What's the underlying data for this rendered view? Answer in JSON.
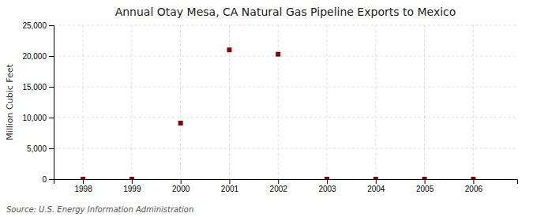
{
  "chart_data": {
    "type": "scatter",
    "title": "Annual Otay Mesa, CA Natural Gas Pipeline Exports to Mexico",
    "y_label": "Million Cubic Feet",
    "annotations": [
      "Source: U.S. Energy Information Administration"
    ],
    "x": [
      1998,
      1999,
      2000,
      2001,
      2002,
      2003,
      2004,
      2005,
      2006
    ],
    "values": [
      0,
      0,
      9100,
      21000,
      20300,
      0,
      0,
      0,
      0
    ],
    "color": "#8b0000",
    "marker": "square",
    "xlim": [
      1997.4,
      2006.9
    ],
    "xticks": [
      1998,
      1999,
      2000,
      2001,
      2002,
      2003,
      2004,
      2005,
      2006
    ],
    "ylim": [
      0,
      25001
    ],
    "yticks": [
      0,
      {
        "value": 5000,
        "label": "5,000"
      },
      {
        "value": 10000,
        "label": "10,000"
      },
      {
        "value": 15000,
        "label": "15,000"
      },
      {
        "value": 20000,
        "label": "20,000"
      },
      {
        "value": 25000,
        "label": "25,000"
      }
    ],
    "grid": true
  }
}
